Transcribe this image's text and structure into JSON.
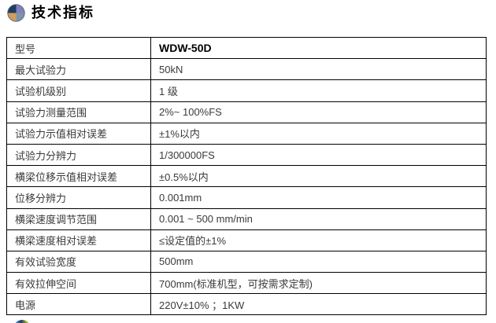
{
  "header": {
    "title": "技术指标",
    "bullet_icon": "pie-sphere-icon",
    "icon_colors": {
      "top_left": "#1f3b5e",
      "top_right": "#8181bc",
      "bottom_left": "#d39c5f",
      "bottom_right": "#7e93ad",
      "outline": "#5a6b7d"
    }
  },
  "table": {
    "border_color": "#000000",
    "text_color": "#3a3a3a",
    "rows": [
      {
        "label": "型号",
        "value": "WDW-50D",
        "bold": true
      },
      {
        "label": "最大试验力",
        "value": "50kN",
        "bold": false
      },
      {
        "label": "试验机级别",
        "value": "1 级",
        "bold": false
      },
      {
        "label": "试验力测量范围",
        "value": "2%~ 100%FS",
        "bold": false
      },
      {
        "label": "试验力示值相对误差",
        "value": "±1%以内",
        "bold": false
      },
      {
        "label": "试验力分辨力",
        "value": "1/300000FS",
        "bold": false
      },
      {
        "label": "横梁位移示值相对误差",
        "value": "±0.5%以内",
        "bold": false
      },
      {
        "label": "位移分辨力",
        "value": "0.001mm",
        "bold": false
      },
      {
        "label": "横梁速度调节范围",
        "value": "0.001 ~ 500 mm/min",
        "bold": false
      },
      {
        "label": "横梁速度相对误差",
        "value": "≤设定值的±1%",
        "bold": false
      },
      {
        "label": "有效试验宽度",
        "value": "500mm",
        "bold": false
      },
      {
        "label": "有效拉伸空间",
        "value": "700mm(标准机型，可按需求定制)",
        "bold": false
      },
      {
        "label": "电源",
        "value": "220V±10% ；1KW",
        "bold": false
      }
    ]
  },
  "footer": {
    "next_bullet_icon": "pie-sphere-icon-partial"
  }
}
